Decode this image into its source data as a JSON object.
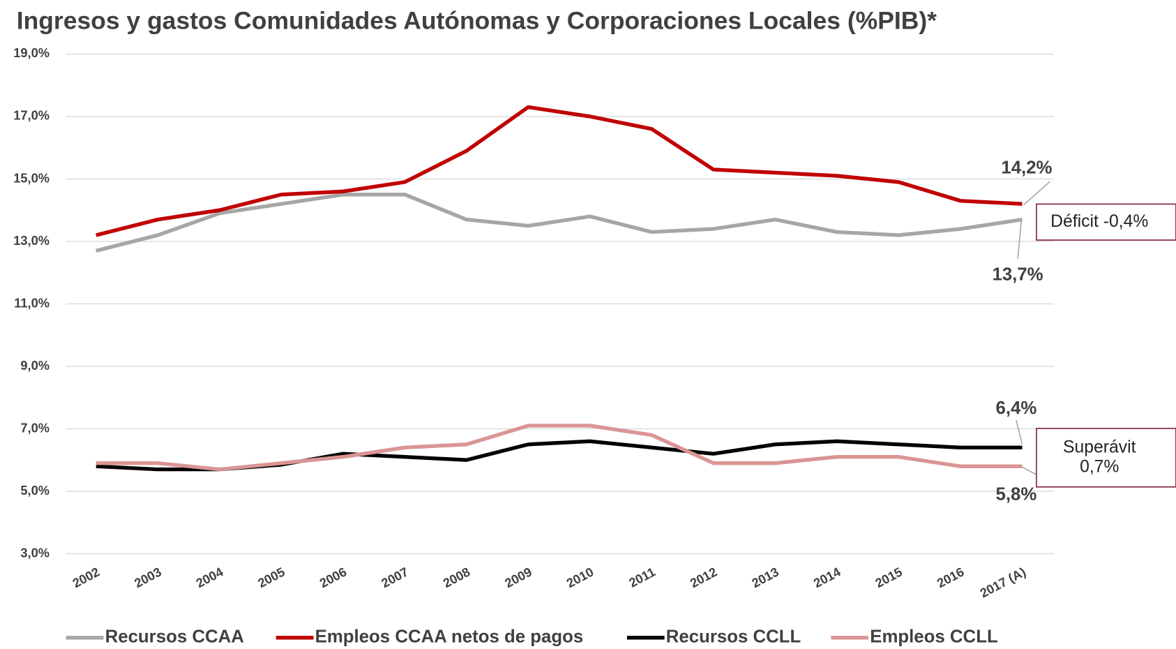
{
  "chart_data": {
    "type": "line",
    "title": "Ingresos y gastos Comunidades Autónomas y Corporaciones Locales (%PIB)*",
    "categories": [
      "2002",
      "2003",
      "2004",
      "2005",
      "2006",
      "2007",
      "2008",
      "2009",
      "2010",
      "2011",
      "2012",
      "2013",
      "2014",
      "2015",
      "2016",
      "2017 (A)"
    ],
    "series": [
      {
        "name": "Recursos CCAA",
        "color": "#a6a6a6",
        "values": [
          12.7,
          13.2,
          13.9,
          14.2,
          14.5,
          14.5,
          13.7,
          13.5,
          13.8,
          13.3,
          13.4,
          13.7,
          13.3,
          13.2,
          13.4,
          13.7
        ]
      },
      {
        "name": "Empleos CCAA netos de pagos",
        "color": "#c00000",
        "values": [
          13.2,
          13.7,
          14.0,
          14.5,
          14.6,
          14.9,
          15.9,
          17.3,
          17.0,
          16.6,
          15.3,
          15.2,
          15.1,
          14.9,
          14.3,
          14.2
        ]
      },
      {
        "name": "Recursos CCLL",
        "color": "#000000",
        "values": [
          5.8,
          5.7,
          5.7,
          5.85,
          6.2,
          6.1,
          6.0,
          6.5,
          6.6,
          6.4,
          6.2,
          6.5,
          6.6,
          6.5,
          6.4,
          6.4
        ]
      },
      {
        "name": "Empleos CCLL",
        "color": "#d99594",
        "values": [
          5.9,
          5.9,
          5.7,
          5.9,
          6.1,
          6.4,
          6.5,
          7.1,
          7.1,
          6.8,
          5.9,
          5.9,
          6.1,
          6.1,
          5.8,
          5.8
        ]
      }
    ],
    "ylim": [
      3,
      19
    ],
    "yticks": [
      {
        "value": 3,
        "label": "3,0%"
      },
      {
        "value": 5,
        "label": "5,0%"
      },
      {
        "value": 7,
        "label": "7,0%"
      },
      {
        "value": 9,
        "label": "9,0%"
      },
      {
        "value": 11,
        "label": "11,0%"
      },
      {
        "value": 13,
        "label": "13,0%"
      },
      {
        "value": 15,
        "label": "15,0%"
      },
      {
        "value": 17,
        "label": "17,0%"
      },
      {
        "value": 19,
        "label": "19,0%"
      }
    ],
    "grid": true,
    "legend": "bottom",
    "annotations": [
      "14,2%",
      "13,7%",
      "6,4%",
      "5,8%"
    ],
    "boxes": [
      {
        "lines": [
          "Déficit -0,4%"
        ]
      },
      {
        "lines": [
          "Superávit",
          "0,7%"
        ]
      }
    ]
  }
}
